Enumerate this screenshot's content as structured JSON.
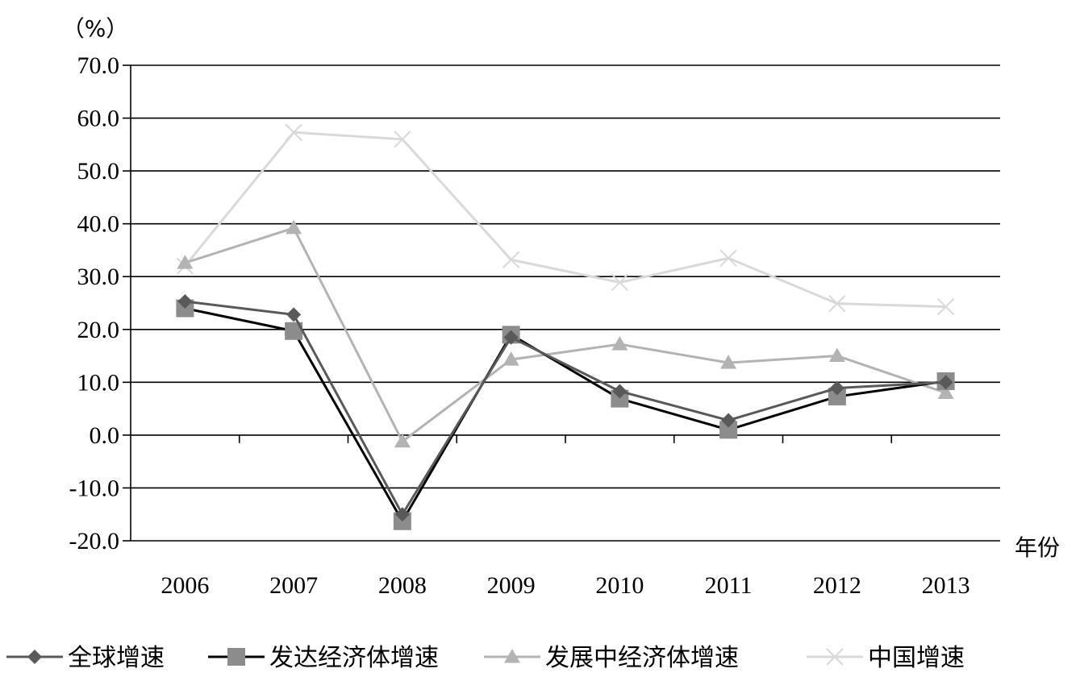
{
  "chart_data": {
    "type": "line",
    "ylabel": "（%）",
    "xlabel": "年份",
    "categories": [
      "2006",
      "2007",
      "2008",
      "2009",
      "2010",
      "2011",
      "2012",
      "2013"
    ],
    "ylim": [
      -20,
      70
    ],
    "yticks": [
      "70.0",
      "60.0",
      "50.0",
      "40.0",
      "30.0",
      "20.0",
      "10.0",
      "0.0",
      "-10.0",
      "-20.0"
    ],
    "grid": true,
    "legend_position": "bottom",
    "series": [
      {
        "name": "全球增速",
        "marker": "diamond",
        "color": "#595959",
        "marker_color": "#595959",
        "values": [
          25.3,
          22.8,
          -15.0,
          18.5,
          8.3,
          2.8,
          8.9,
          10.0
        ]
      },
      {
        "name": "发达经济体增速",
        "marker": "square",
        "color": "#000000",
        "marker_color": "#8c8c8c",
        "values": [
          24.0,
          19.7,
          -16.3,
          19.0,
          6.9,
          1.0,
          7.3,
          10.2
        ]
      },
      {
        "name": "发展中经济体增速",
        "marker": "triangle",
        "color": "#b3b3b3",
        "marker_color": "#b3b3b3",
        "values": [
          32.6,
          39.2,
          -1.2,
          14.3,
          17.2,
          13.7,
          15.0,
          8.0
        ]
      },
      {
        "name": "中国增速",
        "marker": "x",
        "color": "#d9d9d9",
        "marker_color": "#d9d9d9",
        "values": [
          32.0,
          57.3,
          56.0,
          33.2,
          28.9,
          33.5,
          24.9,
          24.3
        ]
      }
    ]
  }
}
